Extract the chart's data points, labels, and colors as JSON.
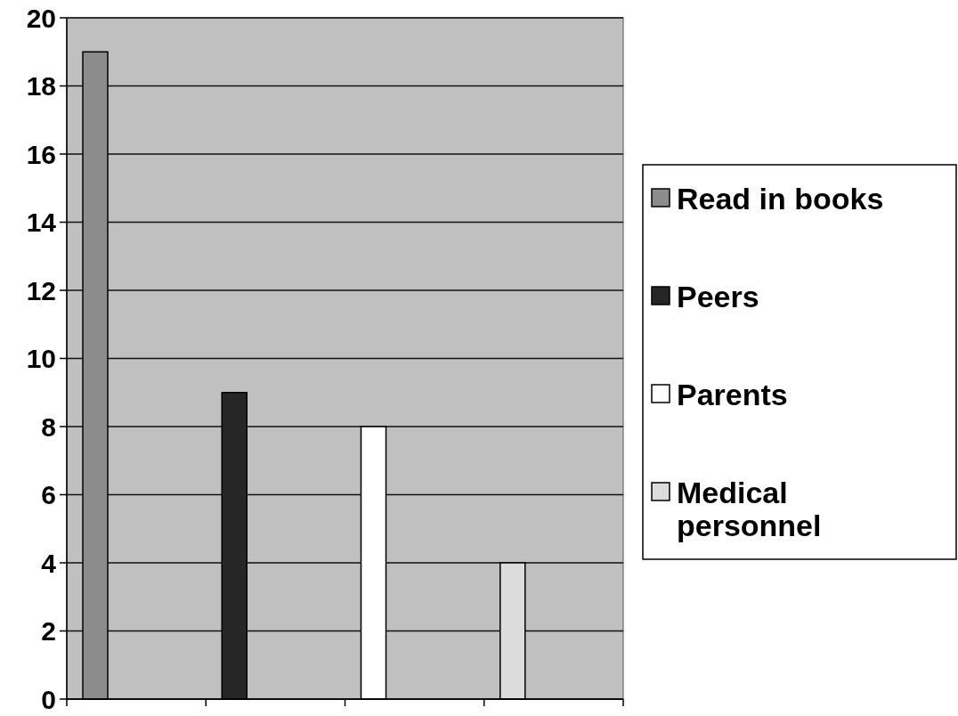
{
  "chart_data": {
    "type": "bar",
    "categories": [
      null,
      null,
      null,
      null
    ],
    "series": [
      {
        "name": "Read in books",
        "color": "#8c8c8c",
        "values": [
          19,
          null,
          null,
          null
        ]
      },
      {
        "name": "Peers",
        "color": "#262626",
        "values": [
          null,
          9,
          null,
          null
        ]
      },
      {
        "name": "Parents",
        "color": "#ffffff",
        "values": [
          null,
          null,
          8,
          null
        ]
      },
      {
        "name": "Medical personnel",
        "color": "#dcdcdc",
        "values": [
          null,
          null,
          null,
          4
        ]
      }
    ],
    "ylim": [
      0,
      20
    ],
    "yticks": [
      0,
      2,
      4,
      6,
      8,
      10,
      12,
      14,
      16,
      18,
      20
    ],
    "grid": "y",
    "legend": "right"
  }
}
